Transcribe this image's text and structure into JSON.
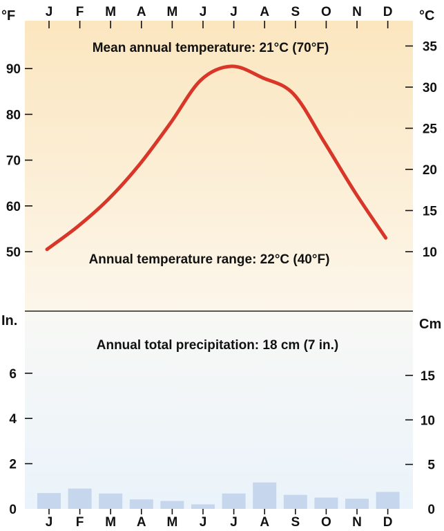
{
  "chart_data": [
    {
      "type": "line",
      "panel": "temperature",
      "categories": [
        "J",
        "F",
        "M",
        "A",
        "M",
        "J",
        "J",
        "A",
        "S",
        "O",
        "N",
        "D"
      ],
      "series": [
        {
          "values": [
            50.5,
            55.5,
            61.5,
            69,
            78,
            87.5,
            90.5,
            88,
            84.5,
            74,
            63,
            53
          ],
          "color": "#d9362a"
        }
      ],
      "left_axis": {
        "label": "°F",
        "ticks": [
          50,
          60,
          70,
          80,
          90
        ],
        "range": [
          40,
          100
        ]
      },
      "right_axis": {
        "label": "°C",
        "ticks": [
          10,
          15,
          20,
          25,
          30,
          35
        ]
      },
      "annotations": [
        "Mean annual temperature: 21°C (70°F)",
        "Annual temperature range: 22°C (40°F)"
      ],
      "background": "#fbe8c4"
    },
    {
      "type": "bar",
      "panel": "precipitation",
      "categories": [
        "J",
        "F",
        "M",
        "A",
        "M",
        "J",
        "J",
        "A",
        "S",
        "O",
        "N",
        "D"
      ],
      "values": [
        0.7,
        0.9,
        0.68,
        0.42,
        0.35,
        0.2,
        0.68,
        1.17,
        0.62,
        0.5,
        0.45,
        0.75
      ],
      "bar_color": "#c6d6ec",
      "left_axis": {
        "label": "In.",
        "ticks": [
          0,
          2,
          4,
          6
        ]
      },
      "right_axis": {
        "label": "Cm",
        "ticks": [
          0,
          5,
          10,
          15
        ]
      },
      "annotations": [
        "Annual total precipitation: 18 cm (7 in.)"
      ],
      "background": "#eef5fc"
    }
  ],
  "months_top": [
    "J",
    "F",
    "M",
    "A",
    "M",
    "J",
    "J",
    "A",
    "S",
    "O",
    "N",
    "D"
  ]
}
